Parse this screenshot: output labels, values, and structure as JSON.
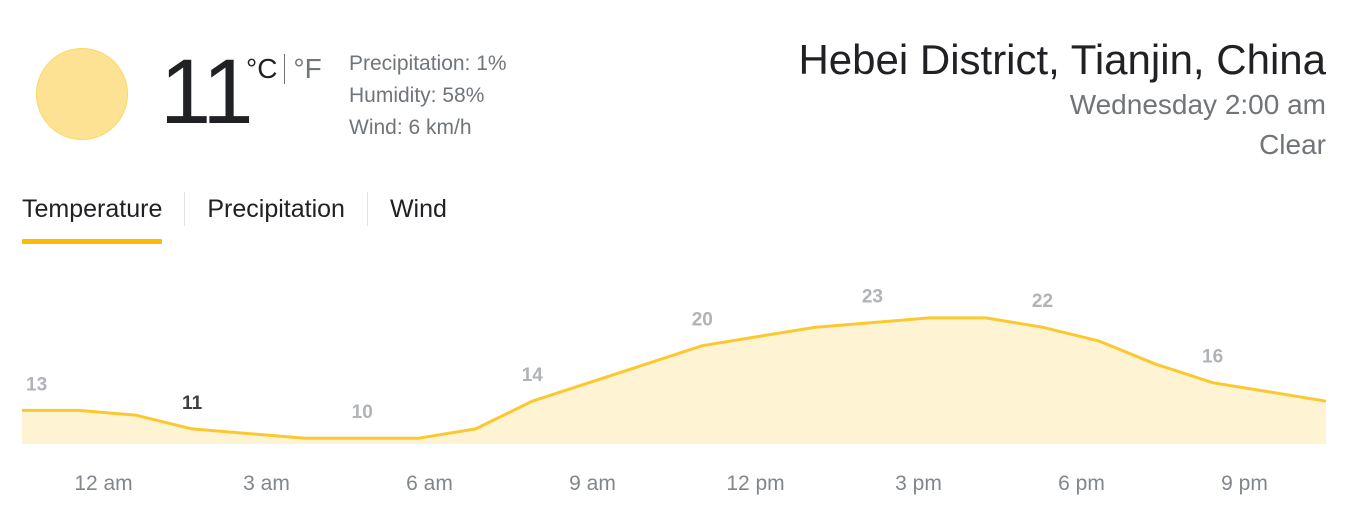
{
  "current": {
    "icon": "sun-icon",
    "temperature": "11",
    "unit_c": "°C",
    "unit_f": "°F",
    "precipitation": "Precipitation: 1%",
    "humidity": "Humidity: 58%",
    "wind": "Wind: 6 km/h"
  },
  "header": {
    "location": "Hebei District, Tianjin, China",
    "datetime": "Wednesday 2:00 am",
    "condition": "Clear"
  },
  "tabs": [
    {
      "label": "Temperature",
      "active": true
    },
    {
      "label": "Precipitation",
      "active": false
    },
    {
      "label": "Wind",
      "active": false
    }
  ],
  "colors": {
    "line": "#fbc92f",
    "fill": "#fef4d3",
    "accent": "#fbbc04"
  },
  "chart_data": {
    "type": "area",
    "x": [
      "12 am",
      "1 am",
      "2 am",
      "3 am",
      "4 am",
      "5 am",
      "6 am",
      "7 am",
      "8 am",
      "9 am",
      "10 am",
      "11 am",
      "12 pm",
      "1 pm",
      "2 pm",
      "3 pm",
      "4 pm",
      "5 pm",
      "6 pm",
      "7 pm",
      "8 pm",
      "9 pm",
      "10 pm",
      "11 pm"
    ],
    "values": [
      13,
      13,
      12.5,
      11,
      10.5,
      10,
      10,
      10,
      11,
      14,
      16,
      18,
      20,
      21,
      22,
      22.5,
      23,
      23,
      22,
      20.5,
      18,
      16,
      15,
      14
    ],
    "tick_labels": [
      "12 am",
      "3 am",
      "6 am",
      "9 am",
      "12 pm",
      "3 pm",
      "6 pm",
      "9 pm"
    ],
    "tick_indices": [
      0,
      3,
      6,
      9,
      12,
      15,
      18,
      21
    ],
    "value_labels": [
      {
        "index": 0,
        "text": "13"
      },
      {
        "index": 3,
        "text": "11",
        "current": true
      },
      {
        "index": 6,
        "text": "10"
      },
      {
        "index": 9,
        "text": "14"
      },
      {
        "index": 12,
        "text": "20"
      },
      {
        "index": 15,
        "text": "23"
      },
      {
        "index": 18,
        "text": "22"
      },
      {
        "index": 21,
        "text": "16"
      }
    ],
    "title": "",
    "xlabel": "",
    "ylabel": "",
    "grid": false
  }
}
